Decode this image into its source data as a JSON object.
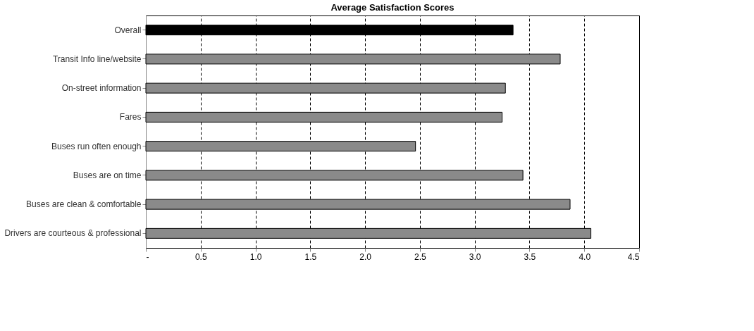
{
  "chart_data": {
    "type": "bar",
    "orientation": "horizontal",
    "title": "Average Satisfaction Scores",
    "categories": [
      "Overall",
      "Transit Info line/website",
      "On-street information",
      "Fares",
      "Buses run often enough",
      "Buses are on time",
      "Buses are clean & comfortable",
      "Drivers are courteous & professional"
    ],
    "values": [
      3.35,
      3.78,
      3.28,
      3.25,
      2.46,
      3.44,
      3.87,
      4.06
    ],
    "colors": [
      "#000000",
      "#8a8a8a",
      "#8a8a8a",
      "#8a8a8a",
      "#8a8a8a",
      "#8a8a8a",
      "#8a8a8a",
      "#8a8a8a"
    ],
    "xlim": [
      0,
      4.5
    ],
    "xticks": [
      {
        "value": 0,
        "label": "-"
      },
      {
        "value": 0.5,
        "label": "0.5"
      },
      {
        "value": 1,
        "label": "1.0"
      },
      {
        "value": 1.5,
        "label": "1.5"
      },
      {
        "value": 2,
        "label": "2.0"
      },
      {
        "value": 2.5,
        "label": "2.5"
      },
      {
        "value": 3,
        "label": "3.0"
      },
      {
        "value": 3.5,
        "label": "3.5"
      },
      {
        "value": 4,
        "label": "4.0"
      },
      {
        "value": 4.5,
        "label": "4.5"
      }
    ],
    "grid": "x"
  }
}
